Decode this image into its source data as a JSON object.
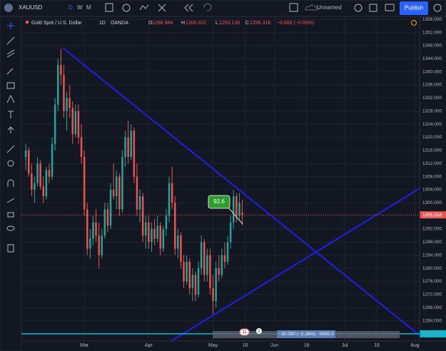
{
  "toolbar": {
    "symbol": "XAUUSD",
    "intervals": [
      "D",
      "W",
      "M"
    ],
    "layout_name": "Unnamed",
    "publish": "Publish"
  },
  "legend": {
    "name": "Gold Spot / U.S. Dollar",
    "interval": "1D",
    "source": "OANDA",
    "o": "O",
    "h": "H",
    "l": "L",
    "c": "C",
    "change": "−0.666 (−0.05%)"
  },
  "annotations": {
    "callout": "92.6",
    "measure": "−30.000 (−2.38%) −3000.0",
    "badges": [
      "11",
      "2"
    ],
    "hline": {
      "value": 1260,
      "label": "1260.000"
    }
  },
  "chart_data": {
    "type": "candlestick",
    "up_color": "#26a69a",
    "down_color": "#ef5350",
    "x": [
      0,
      1,
      2,
      3,
      4,
      5,
      6,
      7,
      8,
      9,
      10,
      11,
      12,
      13,
      14,
      15,
      16,
      17,
      18,
      19,
      20,
      21,
      22,
      23,
      24,
      25,
      26,
      27,
      28,
      29,
      30,
      31,
      32,
      33,
      34,
      35,
      36,
      37,
      38,
      39,
      40,
      41,
      42,
      43,
      44,
      45,
      46,
      47,
      48,
      49,
      50,
      51,
      52,
      53,
      54,
      55,
      56,
      57,
      58,
      59,
      60,
      61,
      62,
      63,
      64,
      65,
      66,
      67,
      68,
      69,
      70,
      71,
      72,
      73,
      74
    ],
    "open": [
      1314,
      1316,
      1309,
      1304,
      1306,
      1312,
      1305,
      1302,
      1310,
      1308,
      1318,
      1330,
      1342,
      1339,
      1328,
      1332,
      1329,
      1321,
      1328,
      1320,
      1314,
      1298,
      1286,
      1289,
      1294,
      1290,
      1284,
      1290,
      1298,
      1293,
      1304,
      1302,
      1308,
      1298,
      1314,
      1320,
      1314,
      1322,
      1308,
      1298,
      1302,
      1290,
      1294,
      1288,
      1292,
      1289,
      1293,
      1286,
      1292,
      1296,
      1306,
      1300,
      1286,
      1290,
      1282,
      1276,
      1282,
      1274,
      1278,
      1272,
      1280,
      1288,
      1278,
      1284,
      1274,
      1270,
      1280,
      1278,
      1284,
      1282,
      1288,
      1294,
      1302,
      1296,
      1296.984
    ],
    "high": [
      1318,
      1317,
      1312,
      1308,
      1314,
      1313,
      1308,
      1311,
      1312,
      1320,
      1332,
      1344,
      1347,
      1342,
      1334,
      1336,
      1331,
      1330,
      1330,
      1324,
      1316,
      1300,
      1292,
      1296,
      1298,
      1294,
      1292,
      1300,
      1300,
      1306,
      1312,
      1310,
      1309,
      1316,
      1322,
      1325,
      1324,
      1323,
      1312,
      1304,
      1303,
      1296,
      1296,
      1294,
      1295,
      1296,
      1294,
      1293,
      1298,
      1308,
      1311,
      1302,
      1292,
      1291,
      1284,
      1284,
      1283,
      1280,
      1279,
      1282,
      1290,
      1289,
      1286,
      1286,
      1278,
      1282,
      1284,
      1286,
      1288,
      1290,
      1296,
      1304,
      1303,
      1303,
      1300.922
    ],
    "low": [
      1310,
      1308,
      1302,
      1300,
      1305,
      1304,
      1300,
      1301,
      1306,
      1307,
      1316,
      1328,
      1336,
      1326,
      1322,
      1326,
      1318,
      1320,
      1318,
      1312,
      1296,
      1284,
      1283,
      1287,
      1288,
      1280,
      1283,
      1289,
      1291,
      1292,
      1301,
      1298,
      1296,
      1297,
      1311,
      1312,
      1313,
      1306,
      1296,
      1294,
      1288,
      1286,
      1286,
      1285,
      1287,
      1288,
      1284,
      1285,
      1290,
      1294,
      1298,
      1284,
      1283,
      1280,
      1274,
      1275,
      1272,
      1270,
      1270,
      1271,
      1278,
      1276,
      1276,
      1272,
      1266,
      1268,
      1276,
      1277,
      1280,
      1281,
      1286,
      1292,
      1294,
      1295,
      1293.138
    ],
    "close": [
      1316,
      1309,
      1304,
      1306,
      1312,
      1305,
      1302,
      1310,
      1308,
      1318,
      1330,
      1342,
      1339,
      1328,
      1332,
      1329,
      1321,
      1328,
      1320,
      1314,
      1298,
      1286,
      1289,
      1294,
      1290,
      1284,
      1290,
      1298,
      1293,
      1304,
      1302,
      1308,
      1298,
      1314,
      1320,
      1314,
      1322,
      1308,
      1298,
      1302,
      1290,
      1294,
      1288,
      1292,
      1289,
      1293,
      1286,
      1292,
      1296,
      1306,
      1300,
      1286,
      1290,
      1282,
      1276,
      1282,
      1274,
      1278,
      1272,
      1280,
      1288,
      1278,
      1284,
      1274,
      1270,
      1280,
      1278,
      1284,
      1282,
      1288,
      1294,
      1302,
      1296,
      1300,
      1296.318
    ],
    "xlim": [
      -1.5,
      134.6
    ],
    "xticks": [
      {
        "value": 20,
        "label": "Mar"
      },
      {
        "value": 42,
        "label": "Apr"
      },
      {
        "value": 64,
        "label": "May"
      },
      {
        "value": 75,
        "label": "16"
      },
      {
        "value": 85,
        "label": "Jun"
      },
      {
        "value": 96,
        "label": "16"
      },
      {
        "value": 109,
        "label": "Jul"
      },
      {
        "value": 120,
        "label": "16"
      },
      {
        "value": 133,
        "label": "Aug"
      }
    ],
    "ylim": [
      1257.8,
      1356.7
    ],
    "yticks": [
      {
        "value": 1356,
        "label": "1356.000"
      },
      {
        "value": 1352,
        "label": "1352.000"
      },
      {
        "value": 1348,
        "label": "1348.000"
      },
      {
        "value": 1344,
        "label": "1344.000"
      },
      {
        "value": 1340,
        "label": "1340.000"
      },
      {
        "value": 1336,
        "label": "1336.000"
      },
      {
        "value": 1332,
        "label": "1332.000"
      },
      {
        "value": 1328,
        "label": "1328.000"
      },
      {
        "value": 1324,
        "label": "1324.000"
      },
      {
        "value": 1320,
        "label": "1320.000"
      },
      {
        "value": 1316,
        "label": "1316.000"
      },
      {
        "value": 1312,
        "label": "1312.000"
      },
      {
        "value": 1308,
        "label": "1308.000"
      },
      {
        "value": 1304,
        "label": "1304.000"
      },
      {
        "value": 1300,
        "label": "1300.000"
      },
      {
        "value": 1296,
        "label": "1296.000"
      },
      {
        "value": 1292,
        "label": "1292.000"
      },
      {
        "value": 1288,
        "label": "1288.000"
      },
      {
        "value": 1284,
        "label": "1284.000"
      },
      {
        "value": 1280,
        "label": "1280.000"
      },
      {
        "value": 1276,
        "label": "1276.000"
      },
      {
        "value": 1272,
        "label": "1272.000"
      },
      {
        "value": 1268,
        "label": "1268.000"
      },
      {
        "value": 1264,
        "label": "1264.000"
      },
      {
        "value": 1260,
        "label": "1260.000"
      }
    ],
    "grid": true
  }
}
